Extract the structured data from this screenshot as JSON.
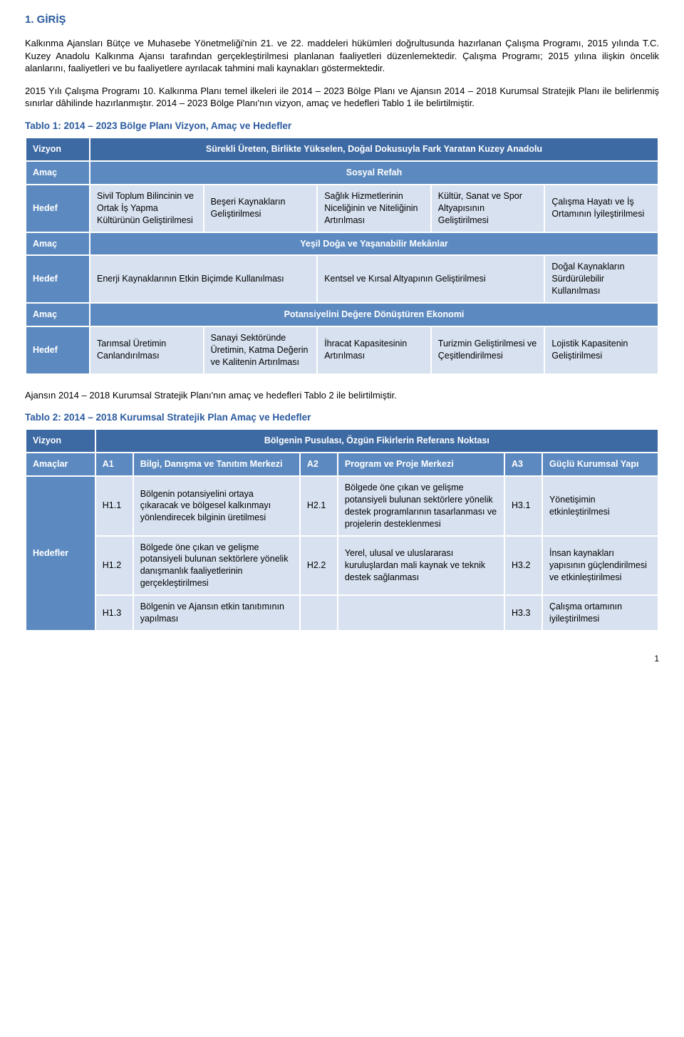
{
  "heading": "1. GİRİŞ",
  "paragraphs": {
    "p1": "Kalkınma Ajansları Bütçe ve Muhasebe Yönetmeliği'nin 21. ve 22. maddeleri hükümleri doğrultusunda hazırlanan Çalışma Programı, 2015 yılında T.C. Kuzey Anadolu Kalkınma Ajansı tarafından gerçekleştirilmesi planlanan faaliyetleri düzenlemektedir. Çalışma Programı; 2015 yılına ilişkin öncelik alanlarını, faaliyetleri ve bu faaliyetlere ayrılacak tahmini mali kaynakları göstermektedir.",
    "p2": "2015 Yılı Çalışma Programı 10. Kalkınma Planı temel ilkeleri ile 2014 – 2023 Bölge Planı ve Ajansın 2014 – 2018 Kurumsal Stratejik Planı ile belirlenmiş sınırlar dâhilinde hazırlanmıştır. 2014 – 2023 Bölge Planı'nın vizyon, amaç ve hedefleri Tablo 1 ile belirtilmiştir.",
    "p3": "Ajansın 2014 – 2018 Kurumsal Stratejik Planı'nın amaç ve hedefleri Tablo 2 ile belirtilmiştir."
  },
  "table1": {
    "caption": "Tablo 1: 2014 – 2023 Bölge Planı Vizyon, Amaç ve Hedefler",
    "vizyon_label": "Vizyon",
    "vizyon_text": "Sürekli Üreten, Birlikte Yükselen, Doğal Dokusuyla Fark Yaratan Kuzey Anadolu",
    "amac_label": "Amaç",
    "hedef_label": "Hedef",
    "amac1_title": "Sosyal Refah",
    "amac1_hedef": [
      "Sivil Toplum Bilincinin ve Ortak İş Yapma Kültürünün Geliştirilmesi",
      "Beşeri Kaynakların Geliştirilmesi",
      "Sağlık Hizmetlerinin Niceliğinin ve Niteliğinin Artırılması",
      "Kültür, Sanat ve Spor Altyapısının Geliştirilmesi",
      "Çalışma Hayatı ve İş Ortamının İyileştirilmesi"
    ],
    "amac2_title": "Yeşil Doğa ve Yaşanabilir Mekânlar",
    "amac2_hedef": [
      "Enerji Kaynaklarının Etkin Biçimde Kullanılması",
      "Kentsel ve Kırsal Altyapının Geliştirilmesi",
      "Doğal Kaynakların Sürdürülebilir Kullanılması"
    ],
    "amac3_title": "Potansiyelini Değere Dönüştüren Ekonomi",
    "amac3_hedef": [
      "Tarımsal Üretimin Canlandırılması",
      "Sanayi Sektöründe Üretimin, Katma Değerin ve Kalitenin Artırılması",
      "İhracat Kapasitesinin Artırılması",
      "Turizmin Geliştirilmesi ve Çeşitlendirilmesi",
      "Lojistik Kapasitenin Geliştirilmesi"
    ]
  },
  "table2": {
    "caption": "Tablo 2: 2014 – 2018 Kurumsal Stratejik Plan Amaç ve Hedefler",
    "vizyon_label": "Vizyon",
    "vizyon_text": "Bölgenin Pusulası, Özgün Fikirlerin Referans Noktası",
    "amaclar_label": "Amaçlar",
    "hedefler_label": "Hedefler",
    "a1_code": "A1",
    "a1_text": "Bilgi, Danışma ve Tanıtım Merkezi",
    "a2_code": "A2",
    "a2_text": "Program ve Proje Merkezi",
    "a3_code": "A3",
    "a3_text": "Güçlü Kurumsal Yapı",
    "h11_code": "H1.1",
    "h11_text": "Bölgenin potansiyelini ortaya çıkaracak ve bölgesel kalkınmayı yönlendirecek bilginin üretilmesi",
    "h21_code": "H2.1",
    "h21_text": "Bölgede öne çıkan ve gelişme potansiyeli bulunan sektörlere yönelik destek programlarının tasarlanması ve projelerin desteklenmesi",
    "h31_code": "H3.1",
    "h31_text": "Yönetişimin etkinleştirilmesi",
    "h12_code": "H1.2",
    "h12_text": "Bölgede öne çıkan ve gelişme potansiyeli bulunan sektörlere yönelik danışmanlık faaliyetlerinin gerçekleştirilmesi",
    "h22_code": "H2.2",
    "h22_text": "Yerel, ulusal ve uluslararası kuruluşlardan mali kaynak ve teknik destek sağlanması",
    "h32_code": "H3.2",
    "h32_text": "İnsan kaynakları yapısının güçlendirilmesi ve etkinleştirilmesi",
    "h13_code": "H1.3",
    "h13_text": "Bölgenin ve Ajansın etkin tanıtımının yapılması",
    "h33_code": "H3.3",
    "h33_text": "Çalışma ortamının iyileştirilmesi"
  },
  "page_number": "1",
  "colors": {
    "heading": "#2a5a9e",
    "dark_row": "#3e6aa4",
    "mid_row": "#5c8ac0",
    "light_row": "#d7e1ef"
  }
}
